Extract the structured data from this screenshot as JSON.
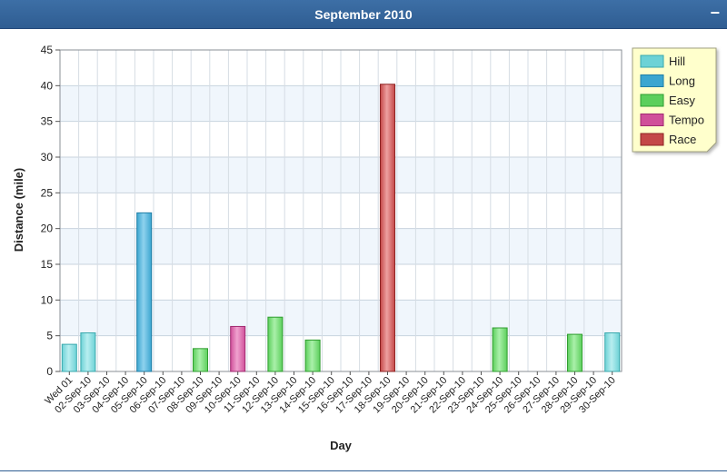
{
  "header": {
    "title": "September 2010",
    "minimize_label": "−"
  },
  "colors": {
    "Hill": {
      "fill": "#6dd2d6",
      "stroke": "#3aa8ad",
      "light": "#b8eef0"
    },
    "Long": {
      "fill": "#3ba6d0",
      "stroke": "#1f7ea6",
      "light": "#8fd2ee"
    },
    "Easy": {
      "fill": "#5ccf5c",
      "stroke": "#2f9d2f",
      "light": "#aaf0aa"
    },
    "Tempo": {
      "fill": "#d0509a",
      "stroke": "#a02a70",
      "light": "#f0a2cf"
    },
    "Race": {
      "fill": "#c44848",
      "stroke": "#8e2424",
      "light": "#eea0a0"
    }
  },
  "chart_data": {
    "type": "bar",
    "xlabel": "Day",
    "ylabel": "Distance (mile)",
    "ylim": [
      0,
      45
    ],
    "yticks": [
      0,
      5,
      10,
      15,
      20,
      25,
      30,
      35,
      40,
      45
    ],
    "grid": true,
    "legend_position": "top-right",
    "legend": [
      "Hill",
      "Long",
      "Easy",
      "Tempo",
      "Race"
    ],
    "categories": [
      "Wed 01",
      "02-Sep-10",
      "03-Sep-10",
      "04-Sep-10",
      "05-Sep-10",
      "06-Sep-10",
      "07-Sep-10",
      "08-Sep-10",
      "09-Sep-10",
      "10-Sep-10",
      "11-Sep-10",
      "12-Sep-10",
      "13-Sep-10",
      "14-Sep-10",
      "15-Sep-10",
      "16-Sep-10",
      "17-Sep-10",
      "18-Sep-10",
      "19-Sep-10",
      "20-Sep-10",
      "21-Sep-10",
      "22-Sep-10",
      "23-Sep-10",
      "24-Sep-10",
      "25-Sep-10",
      "26-Sep-10",
      "27-Sep-10",
      "28-Sep-10",
      "29-Sep-10",
      "30-Sep-10"
    ],
    "bars": [
      {
        "category": "Wed 01",
        "value": 3.8,
        "type": "Hill"
      },
      {
        "category": "02-Sep-10",
        "value": 5.4,
        "type": "Hill"
      },
      {
        "category": "05-Sep-10",
        "value": 22.2,
        "type": "Long"
      },
      {
        "category": "08-Sep-10",
        "value": 3.2,
        "type": "Easy"
      },
      {
        "category": "10-Sep-10",
        "value": 6.3,
        "type": "Tempo"
      },
      {
        "category": "12-Sep-10",
        "value": 7.6,
        "type": "Easy"
      },
      {
        "category": "14-Sep-10",
        "value": 4.4,
        "type": "Easy"
      },
      {
        "category": "18-Sep-10",
        "value": 40.2,
        "type": "Race"
      },
      {
        "category": "24-Sep-10",
        "value": 6.1,
        "type": "Easy"
      },
      {
        "category": "28-Sep-10",
        "value": 5.2,
        "type": "Easy"
      },
      {
        "category": "30-Sep-10",
        "value": 5.4,
        "type": "Hill"
      }
    ]
  }
}
